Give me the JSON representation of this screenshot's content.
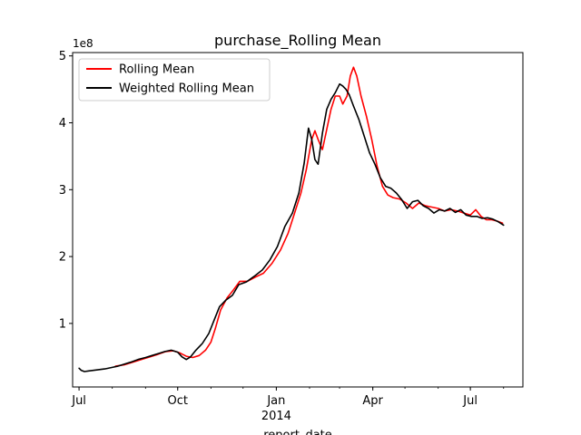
{
  "chart_data": {
    "type": "line",
    "title": "purchase_Rolling Mean",
    "xlabel": "report_date",
    "ylabel": "",
    "y_multiplier_label": "1e8",
    "x_domain": [
      "2013-06-25",
      "2014-08-19"
    ],
    "ylim": [
      0.05,
      5.05
    ],
    "x_ticks": [
      {
        "date": "2013-07-01",
        "label": "Jul",
        "sublabel": ""
      },
      {
        "date": "2013-10-01",
        "label": "Oct",
        "sublabel": ""
      },
      {
        "date": "2014-01-01",
        "label": "Jan",
        "sublabel": "2014"
      },
      {
        "date": "2014-04-01",
        "label": "Apr",
        "sublabel": ""
      },
      {
        "date": "2014-07-01",
        "label": "Jul",
        "sublabel": ""
      }
    ],
    "y_ticks": [
      1,
      2,
      3,
      4,
      5
    ],
    "grid": false,
    "legend_position": "top-left",
    "series": [
      {
        "name": "Rolling Mean",
        "color": "#ff0000",
        "points": [
          [
            "2013-08-04",
            0.36
          ],
          [
            "2013-08-12",
            0.38
          ],
          [
            "2013-08-20",
            0.42
          ],
          [
            "2013-08-28",
            0.46
          ],
          [
            "2013-09-05",
            0.5
          ],
          [
            "2013-09-13",
            0.54
          ],
          [
            "2013-09-20",
            0.58
          ],
          [
            "2013-09-27",
            0.59
          ],
          [
            "2013-10-03",
            0.56
          ],
          [
            "2013-10-09",
            0.51
          ],
          [
            "2013-10-15",
            0.49
          ],
          [
            "2013-10-21",
            0.52
          ],
          [
            "2013-10-27",
            0.6
          ],
          [
            "2013-11-01",
            0.72
          ],
          [
            "2013-11-05",
            0.92
          ],
          [
            "2013-11-10",
            1.2
          ],
          [
            "2013-11-16",
            1.38
          ],
          [
            "2013-11-22",
            1.5
          ],
          [
            "2013-11-28",
            1.63
          ],
          [
            "2013-12-05",
            1.63
          ],
          [
            "2013-12-12",
            1.69
          ],
          [
            "2013-12-20",
            1.75
          ],
          [
            "2013-12-28",
            1.9
          ],
          [
            "2014-01-05",
            2.1
          ],
          [
            "2014-01-12",
            2.35
          ],
          [
            "2014-01-18",
            2.65
          ],
          [
            "2014-01-24",
            2.95
          ],
          [
            "2014-01-29",
            3.3
          ],
          [
            "2014-02-03",
            3.75
          ],
          [
            "2014-02-06",
            3.88
          ],
          [
            "2014-02-09",
            3.75
          ],
          [
            "2014-02-13",
            3.6
          ],
          [
            "2014-02-17",
            3.9
          ],
          [
            "2014-02-21",
            4.2
          ],
          [
            "2014-02-25",
            4.4
          ],
          [
            "2014-03-01",
            4.4
          ],
          [
            "2014-03-04",
            4.28
          ],
          [
            "2014-03-08",
            4.4
          ],
          [
            "2014-03-11",
            4.7
          ],
          [
            "2014-03-14",
            4.83
          ],
          [
            "2014-03-17",
            4.7
          ],
          [
            "2014-03-21",
            4.4
          ],
          [
            "2014-03-26",
            4.1
          ],
          [
            "2014-03-31",
            3.75
          ],
          [
            "2014-04-05",
            3.35
          ],
          [
            "2014-04-10",
            3.05
          ],
          [
            "2014-04-15",
            2.92
          ],
          [
            "2014-04-20",
            2.88
          ],
          [
            "2014-04-26",
            2.86
          ],
          [
            "2014-05-02",
            2.8
          ],
          [
            "2014-05-08",
            2.72
          ],
          [
            "2014-05-14",
            2.8
          ],
          [
            "2014-05-20",
            2.76
          ],
          [
            "2014-05-26",
            2.74
          ],
          [
            "2014-06-01",
            2.72
          ],
          [
            "2014-06-07",
            2.68
          ],
          [
            "2014-06-13",
            2.7
          ],
          [
            "2014-06-19",
            2.68
          ],
          [
            "2014-06-25",
            2.65
          ],
          [
            "2014-07-01",
            2.62
          ],
          [
            "2014-07-06",
            2.7
          ],
          [
            "2014-07-11",
            2.6
          ],
          [
            "2014-07-16",
            2.55
          ],
          [
            "2014-07-21",
            2.55
          ],
          [
            "2014-07-26",
            2.53
          ],
          [
            "2014-07-31",
            2.5
          ]
        ]
      },
      {
        "name": "Weighted Rolling Mean",
        "color": "#000000",
        "points": [
          [
            "2013-07-01",
            0.33
          ],
          [
            "2013-07-03",
            0.3
          ],
          [
            "2013-07-06",
            0.28
          ],
          [
            "2013-07-10",
            0.29
          ],
          [
            "2013-07-15",
            0.3
          ],
          [
            "2013-07-20",
            0.31
          ],
          [
            "2013-07-25",
            0.32
          ],
          [
            "2013-07-31",
            0.34
          ],
          [
            "2013-08-06",
            0.36
          ],
          [
            "2013-08-12",
            0.39
          ],
          [
            "2013-08-18",
            0.42
          ],
          [
            "2013-08-25",
            0.46
          ],
          [
            "2013-09-01",
            0.49
          ],
          [
            "2013-09-07",
            0.52
          ],
          [
            "2013-09-13",
            0.55
          ],
          [
            "2013-09-19",
            0.58
          ],
          [
            "2013-09-25",
            0.6
          ],
          [
            "2013-10-01",
            0.57
          ],
          [
            "2013-10-05",
            0.5
          ],
          [
            "2013-10-09",
            0.46
          ],
          [
            "2013-10-13",
            0.5
          ],
          [
            "2013-10-18",
            0.6
          ],
          [
            "2013-10-24",
            0.7
          ],
          [
            "2013-10-30",
            0.85
          ],
          [
            "2013-11-04",
            1.05
          ],
          [
            "2013-11-09",
            1.25
          ],
          [
            "2013-11-15",
            1.35
          ],
          [
            "2013-11-21",
            1.42
          ],
          [
            "2013-11-27",
            1.58
          ],
          [
            "2013-12-04",
            1.62
          ],
          [
            "2013-12-11",
            1.7
          ],
          [
            "2013-12-19",
            1.8
          ],
          [
            "2013-12-26",
            1.95
          ],
          [
            "2014-01-02",
            2.15
          ],
          [
            "2014-01-09",
            2.45
          ],
          [
            "2014-01-16",
            2.65
          ],
          [
            "2014-01-22",
            2.95
          ],
          [
            "2014-01-27",
            3.4
          ],
          [
            "2014-01-31",
            3.92
          ],
          [
            "2014-02-03",
            3.75
          ],
          [
            "2014-02-06",
            3.45
          ],
          [
            "2014-02-09",
            3.38
          ],
          [
            "2014-02-13",
            3.85
          ],
          [
            "2014-02-17",
            4.2
          ],
          [
            "2014-02-21",
            4.35
          ],
          [
            "2014-02-25",
            4.45
          ],
          [
            "2014-03-01",
            4.58
          ],
          [
            "2014-03-04",
            4.55
          ],
          [
            "2014-03-07",
            4.5
          ],
          [
            "2014-03-10",
            4.42
          ],
          [
            "2014-03-14",
            4.25
          ],
          [
            "2014-03-19",
            4.05
          ],
          [
            "2014-03-24",
            3.8
          ],
          [
            "2014-03-29",
            3.55
          ],
          [
            "2014-04-03",
            3.38
          ],
          [
            "2014-04-08",
            3.18
          ],
          [
            "2014-04-13",
            3.05
          ],
          [
            "2014-04-18",
            3.02
          ],
          [
            "2014-04-23",
            2.95
          ],
          [
            "2014-04-28",
            2.85
          ],
          [
            "2014-05-03",
            2.72
          ],
          [
            "2014-05-08",
            2.82
          ],
          [
            "2014-05-13",
            2.84
          ],
          [
            "2014-05-18",
            2.76
          ],
          [
            "2014-05-23",
            2.72
          ],
          [
            "2014-05-28",
            2.65
          ],
          [
            "2014-06-02",
            2.7
          ],
          [
            "2014-06-07",
            2.68
          ],
          [
            "2014-06-12",
            2.72
          ],
          [
            "2014-06-17",
            2.66
          ],
          [
            "2014-06-22",
            2.7
          ],
          [
            "2014-06-27",
            2.62
          ],
          [
            "2014-07-02",
            2.6
          ],
          [
            "2014-07-07",
            2.6
          ],
          [
            "2014-07-12",
            2.57
          ],
          [
            "2014-07-17",
            2.58
          ],
          [
            "2014-07-22",
            2.56
          ],
          [
            "2014-07-27",
            2.52
          ],
          [
            "2014-08-01",
            2.47
          ]
        ]
      }
    ]
  }
}
